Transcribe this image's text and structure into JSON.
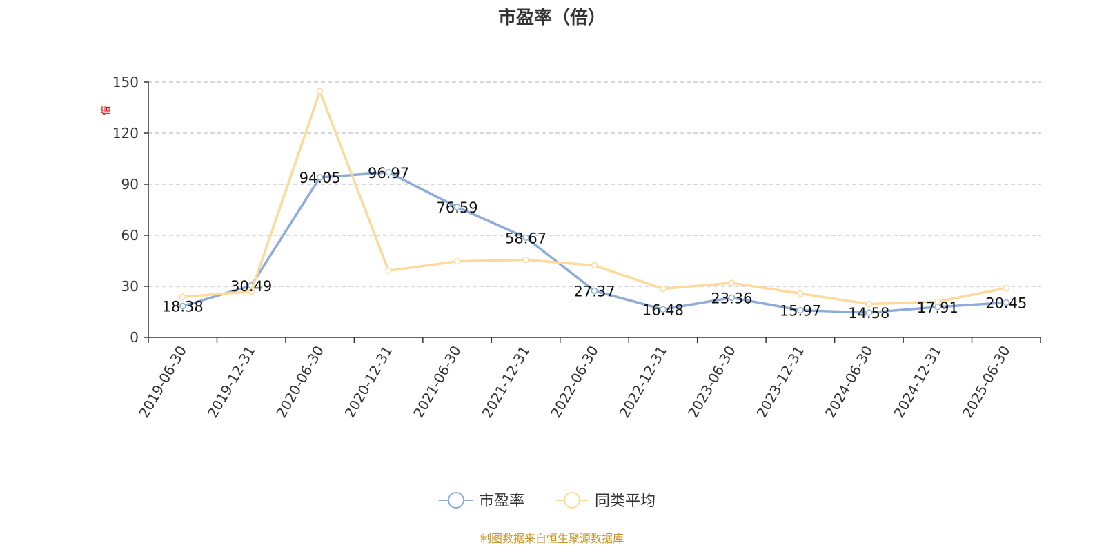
{
  "chart_data": {
    "type": "line",
    "title": "市盈率（倍）",
    "ylabel": "倍",
    "ylim": [
      0,
      150
    ],
    "yticks": [
      0,
      30,
      60,
      90,
      120,
      150
    ],
    "grid": true,
    "legend_position": "bottom",
    "categories": [
      "2019-06-30",
      "2019-12-31",
      "2020-06-30",
      "2020-12-31",
      "2021-06-30",
      "2021-12-31",
      "2022-06-30",
      "2022-12-31",
      "2023-06-30",
      "2023-12-31",
      "2024-06-30",
      "2024-12-31",
      "2025-06-30"
    ],
    "series": [
      {
        "name": "市盈率",
        "color": "#8eacd8",
        "show_labels": true,
        "values": [
          18.38,
          30.49,
          94.05,
          96.97,
          76.59,
          58.67,
          27.37,
          16.48,
          23.36,
          15.97,
          14.58,
          17.91,
          20.45
        ]
      },
      {
        "name": "同类平均",
        "color": "#fdd99a",
        "show_labels": false,
        "values": [
          23.8,
          27.0,
          144.6,
          39.2,
          44.7,
          45.6,
          42.3,
          28.6,
          32.0,
          25.8,
          19.6,
          21.0,
          29.0
        ]
      }
    ]
  },
  "source_text": "制图数据来自恒生聚源数据库",
  "colors": {
    "axis": "#333333",
    "grid": "#cccccc",
    "ylabel": "#cc0000",
    "source": "#c9952b"
  }
}
